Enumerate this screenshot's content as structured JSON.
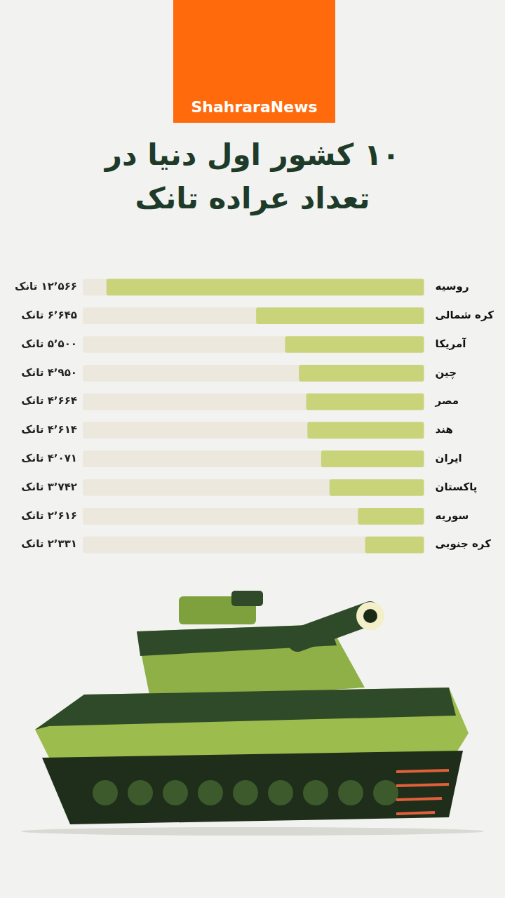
{
  "chart_data": {
    "type": "bar",
    "orientation": "horizontal",
    "title": "۱۰ کشور اول دنیا در تعداد عراده تانک",
    "source": "ShahraraNews",
    "categories": [
      "روسیه",
      "کره شمالی",
      "آمریکا",
      "چین",
      "مصر",
      "هند",
      "ایران",
      "پاکستان",
      "سوریه",
      "کره جنوبی"
    ],
    "values": [
      12566,
      6645,
      5500,
      4950,
      4664,
      4614,
      4071,
      3742,
      2616,
      2331
    ],
    "value_labels": [
      "۱۲٬۵۶۶ تانک",
      "۶٬۶۴۵ تانک",
      "۵٬۵۰۰ تانک",
      "۴٬۹۵۰ تانک",
      "۴٬۶۶۴ تانک",
      "۴٬۶۱۴ تانک",
      "۴٬۰۷۱ تانک",
      "۳٬۷۴۲ تانک",
      "۲٬۶۱۶ تانک",
      "۲٬۳۳۱ تانک"
    ],
    "color": "#c9d37a",
    "xlim": [
      0,
      13500
    ],
    "data_labels": true,
    "tick_labels": "y",
    "grid": false
  }
}
